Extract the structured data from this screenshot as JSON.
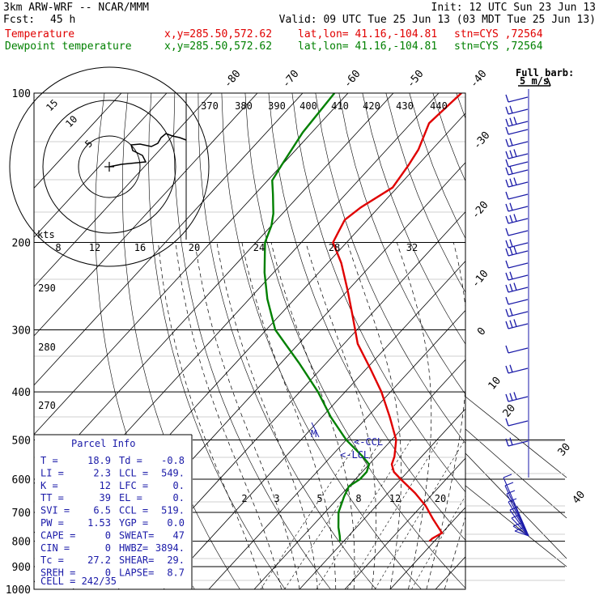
{
  "header": {
    "model": "3km ARW-WRF -- NCAR/MMM",
    "init": "Init: 12 UTC Sun 23 Jun 13",
    "fcst_label": "Fcst:",
    "fcst_value": "45 h",
    "valid": "Valid: 09 UTC Tue 25 Jun 13 (03 MDT Tue 25 Jun 13)",
    "temp_line": {
      "name": "Temperature",
      "xy": "x,y=285.50,572.62",
      "latlon": "lat,lon= 41.16,-104.81",
      "stn": "stn=CYS ,72564"
    },
    "dew_line": {
      "name": "Dewpoint temperature",
      "xy": "x,y=285.50,572.62",
      "latlon": "lat,lon= 41.16,-104.81",
      "stn": "stn=CYS ,72564"
    },
    "colors": {
      "temperature": "#e00000",
      "dewpoint": "#008000",
      "parcel": "#1a1aa8",
      "barbs": "#1a1aa8"
    }
  },
  "full_barb": {
    "line1": "Full barb:",
    "line2": "5 m/s"
  },
  "hodograph": {
    "rings": [
      "15",
      "10",
      "5"
    ],
    "units": "kts"
  },
  "annotations": {
    "ccl": "<-CCL",
    "lcl": "<-LCL",
    "m_marker": "M"
  },
  "parcel_info": {
    "title": "Parcel Info",
    "rows": [
      [
        "T  =",
        "18.9",
        "Td =",
        "-0.8"
      ],
      [
        "LI =",
        "2.3",
        "LCL =",
        "549."
      ],
      [
        "K  =",
        "12",
        "LFC =",
        "0."
      ],
      [
        "TT =",
        "39",
        "EL  =",
        "0."
      ],
      [
        "SVI =",
        "6.5",
        "CCL =",
        "519."
      ],
      [
        "PW =",
        "1.53",
        "YGP =",
        "0.0"
      ],
      [
        "CAPE =",
        "0",
        "SWEAT=",
        "47"
      ],
      [
        "CIN =",
        "0",
        "HWBZ=",
        "3894."
      ],
      [
        "Tc =",
        "27.2",
        "SHEAR=",
        "29."
      ],
      [
        "SREH =",
        "0",
        "LAPSE=",
        "8.7"
      ]
    ],
    "cell": "CELL = 242/35"
  },
  "chart_data": {
    "type": "line",
    "title": "",
    "subtitle": "Skew-T log-P sounding",
    "y_axis": {
      "label": "",
      "scale": "log",
      "ticks": [
        100,
        200,
        300,
        400,
        500,
        600,
        700,
        800,
        900,
        1000
      ],
      "range": [
        100,
        1000
      ]
    },
    "skewed_isotherm_labels": [
      "-80",
      "-70",
      "-60",
      "-50",
      "-40",
      "-30",
      "-20",
      "-10",
      "0",
      "10",
      "20",
      "30",
      "40"
    ],
    "theta_labels_top": [
      "370",
      "380",
      "390",
      "400",
      "410",
      "420",
      "430",
      "440"
    ],
    "mixing_ratio_labels_upper": [
      "8",
      "12",
      "16",
      "20",
      "24",
      "28",
      "32"
    ],
    "theta_labels_left": [
      "290",
      "280",
      "270"
    ],
    "mixing_ratio_labels_lower": [
      "2",
      "3",
      "5",
      "8",
      "12",
      "20"
    ],
    "series": [
      {
        "name": "Temperature",
        "color": "#e00000",
        "p": [
          100,
          115,
          130,
          140,
          155,
          170,
          180,
          190,
          200,
          220,
          250,
          280,
          320,
          360,
          400,
          450,
          500,
          540,
          560,
          580,
          600,
          640,
          680,
          720,
          770,
          790,
          800
        ],
        "t": [
          -65,
          -66,
          -63,
          -62,
          -61,
          -64,
          -65,
          -64,
          -63,
          -57,
          -50,
          -44,
          -37,
          -29,
          -22,
          -15,
          -9,
          -6,
          -5,
          -3,
          0,
          6,
          11,
          15,
          20,
          19,
          18.9
        ]
      },
      {
        "name": "Dewpoint temperature",
        "color": "#008000",
        "p": [
          100,
          120,
          140,
          150,
          160,
          175,
          185,
          200,
          230,
          260,
          300,
          350,
          400,
          450,
          500,
          540,
          560,
          580,
          600,
          620,
          650,
          700,
          750,
          780,
          800
        ],
        "t": [
          -93,
          -92,
          -90,
          -89,
          -86,
          -82,
          -80,
          -78,
          -72,
          -66,
          -58,
          -46,
          -36,
          -28,
          -20,
          -13,
          -10,
          -9,
          -9,
          -10,
          -9,
          -7,
          -4,
          -2,
          -0.8
        ]
      }
    ]
  }
}
